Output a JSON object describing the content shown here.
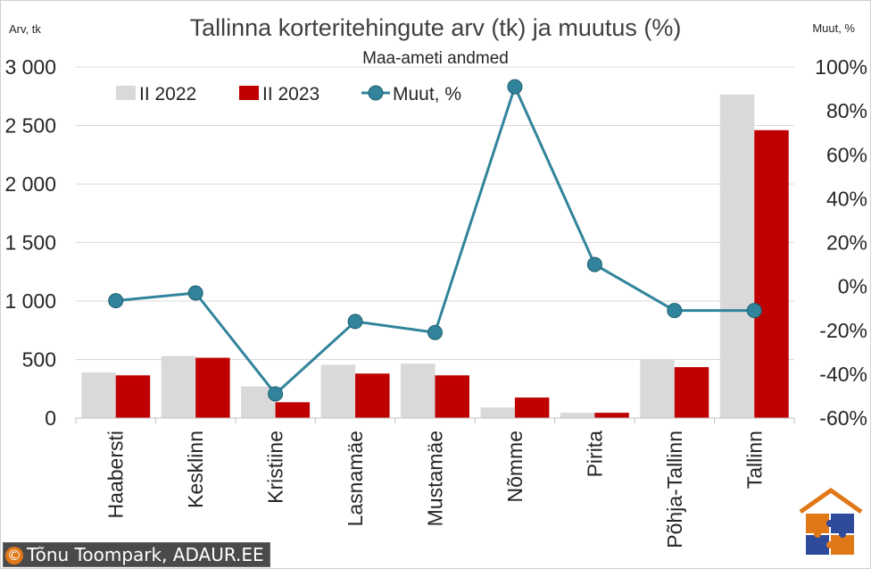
{
  "chart_data": {
    "type": "bar",
    "title": "Tallinna korteritehingute arv (tk) ja muutus (%)",
    "subtitle": "Maa-ameti andmed",
    "ylabel_left": "Arv, tk",
    "ylabel_right": "Muut, %",
    "ylim_left": [
      0,
      3000
    ],
    "ylim_right": [
      -60,
      100
    ],
    "y_ticks_left": [
      "0",
      "500",
      "1 000",
      "1 500",
      "2 000",
      "2 500",
      "3 000"
    ],
    "y_ticks_right": [
      "-60%",
      "-40%",
      "-20%",
      "0%",
      "20%",
      "40%",
      "60%",
      "80%",
      "100%"
    ],
    "categories": [
      "Haabersti",
      "Kesklinn",
      "Kristiine",
      "Lasnamäe",
      "Mustamäe",
      "Nõmme",
      "Pirita",
      "Põhja-Tallinn",
      "Tallinn"
    ],
    "series": [
      {
        "name": "II 2022",
        "type": "bar",
        "axis": "left",
        "color": "#d9d9d9",
        "values": [
          390,
          530,
          270,
          455,
          465,
          90,
          45,
          495,
          2765
        ]
      },
      {
        "name": "II 2023",
        "type": "bar",
        "axis": "left",
        "color": "#c00000",
        "values": [
          365,
          515,
          135,
          380,
          365,
          175,
          45,
          435,
          2460
        ]
      },
      {
        "name": "Muut, %",
        "type": "line",
        "axis": "right",
        "color": "#31849b",
        "values": [
          -6.5,
          -3,
          -49,
          -16,
          -21,
          91,
          10,
          -11,
          -11
        ]
      }
    ],
    "grid": true,
    "legend_position": "top"
  },
  "credit": "Tõnu Toompark, ADAUR.EE",
  "credit_symbol": "©",
  "logo_icon": "house-puzzle-logo"
}
